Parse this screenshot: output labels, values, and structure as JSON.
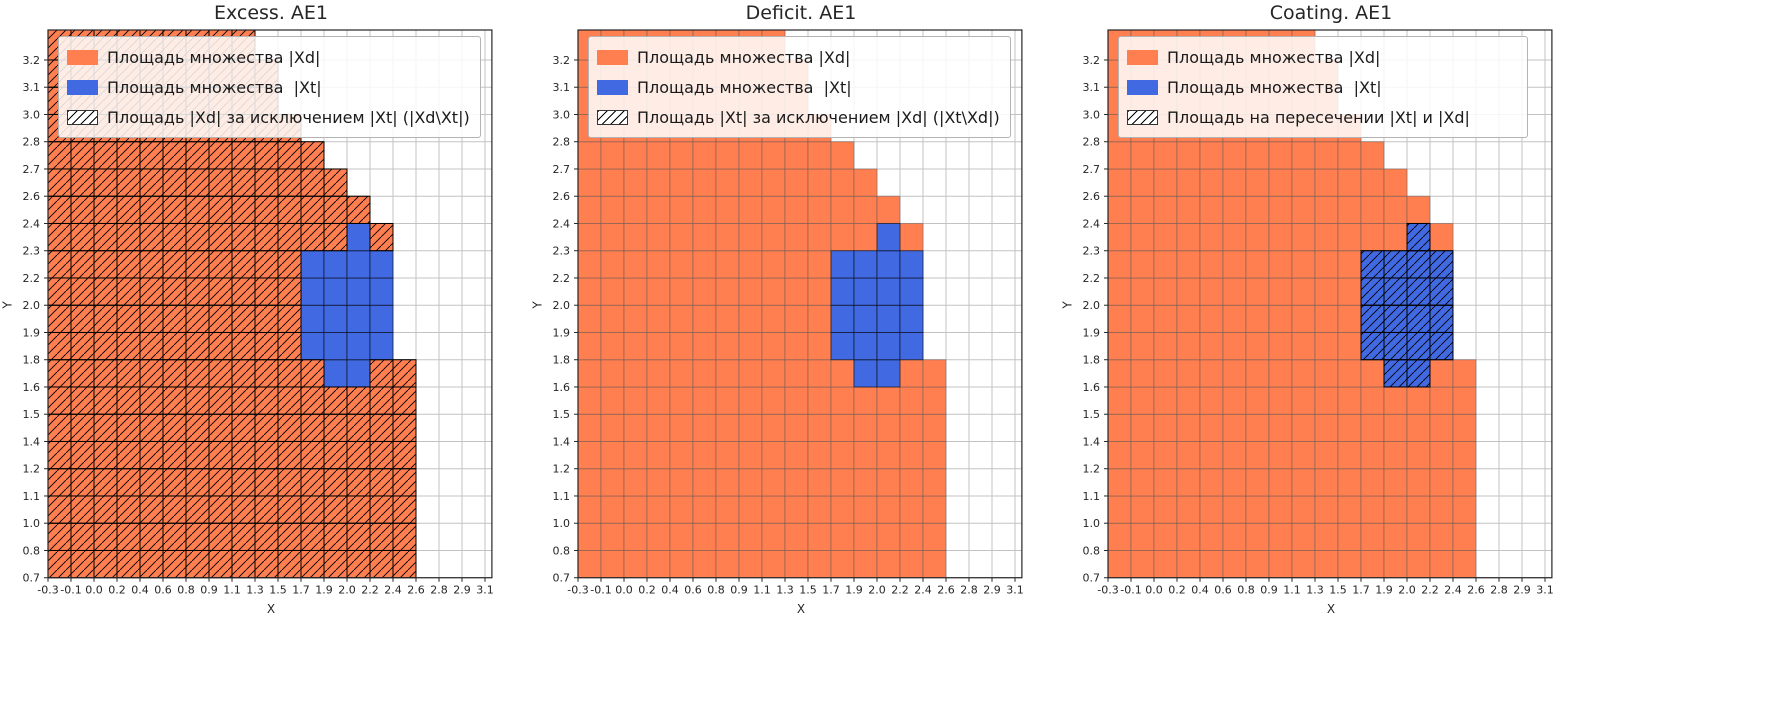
{
  "chart_data": {
    "type": "heatmap",
    "description": "Three matplotlib-style subplots showing set areas on a cell grid: orange region |Xd|, blue region |Xt|, and a black-hatched overlay (difference / intersection) per subplot.",
    "x_axis_label": "X",
    "y_axis_label": "Y",
    "grid": true,
    "legend_position": "upper left",
    "x_tick_labels": [
      "-0.3",
      "-0.1",
      "0.0",
      "0.2",
      "0.4",
      "0.6",
      "0.8",
      "0.9",
      "1.1",
      "1.3",
      "1.5",
      "1.7",
      "1.9",
      "2.0",
      "2.2",
      "2.4",
      "2.6",
      "2.8",
      "2.9",
      "3.1"
    ],
    "y_tick_labels": [
      "0.7",
      "0.8",
      "1.0",
      "1.1",
      "1.2",
      "1.4",
      "1.5",
      "1.6",
      "1.8",
      "1.9",
      "2.0",
      "2.2",
      "2.3",
      "2.4",
      "2.6",
      "2.7",
      "2.8",
      "3.0",
      "3.1",
      "3.2"
    ],
    "colors": {
      "xd": "#ff7f50",
      "xt": "#4169e1",
      "grid": "#c3c3c3",
      "hatch": "#000000",
      "spine": "#262626"
    },
    "xd_rows": [
      [
        0,
        16
      ],
      [
        0,
        16
      ],
      [
        0,
        16
      ],
      [
        0,
        16
      ],
      [
        0,
        16
      ],
      [
        0,
        16
      ],
      [
        0,
        16
      ],
      [
        0,
        16
      ],
      [
        0,
        15
      ],
      [
        0,
        15
      ],
      [
        0,
        15
      ],
      [
        0,
        15
      ],
      [
        0,
        15
      ],
      [
        0,
        14
      ],
      [
        0,
        13
      ],
      [
        0,
        12
      ],
      [
        0,
        11
      ],
      [
        0,
        10
      ],
      [
        0,
        10
      ],
      [
        0,
        9
      ]
    ],
    "xt_rows": {
      "7": [
        12,
        14
      ],
      "8": [
        11,
        15
      ],
      "9": [
        11,
        15
      ],
      "10": [
        11,
        15
      ],
      "11": [
        11,
        15
      ],
      "12": [
        13,
        14
      ]
    },
    "legend_labels": {
      "xd": "Площадь множества |Xd|",
      "xt": "Площадь множества  |Xt|"
    },
    "subplots": [
      {
        "title": "Excess. AE1",
        "hatch_mode": "xd_minus_xt",
        "legend_hatch_label": "Площадь |Xd| за исключением |Xt| (|Xd\\Xt|)"
      },
      {
        "title": "Deficit. AE1",
        "hatch_mode": "xt_minus_xd",
        "legend_hatch_label": "Площадь |Xt| за исключением |Xd| (|Xt\\Xd|)"
      },
      {
        "title": "Coating. AE1",
        "hatch_mode": "xt_intersect_xd",
        "legend_hatch_label": "Площадь на пересечении |Xt| и |Xd|"
      }
    ]
  }
}
